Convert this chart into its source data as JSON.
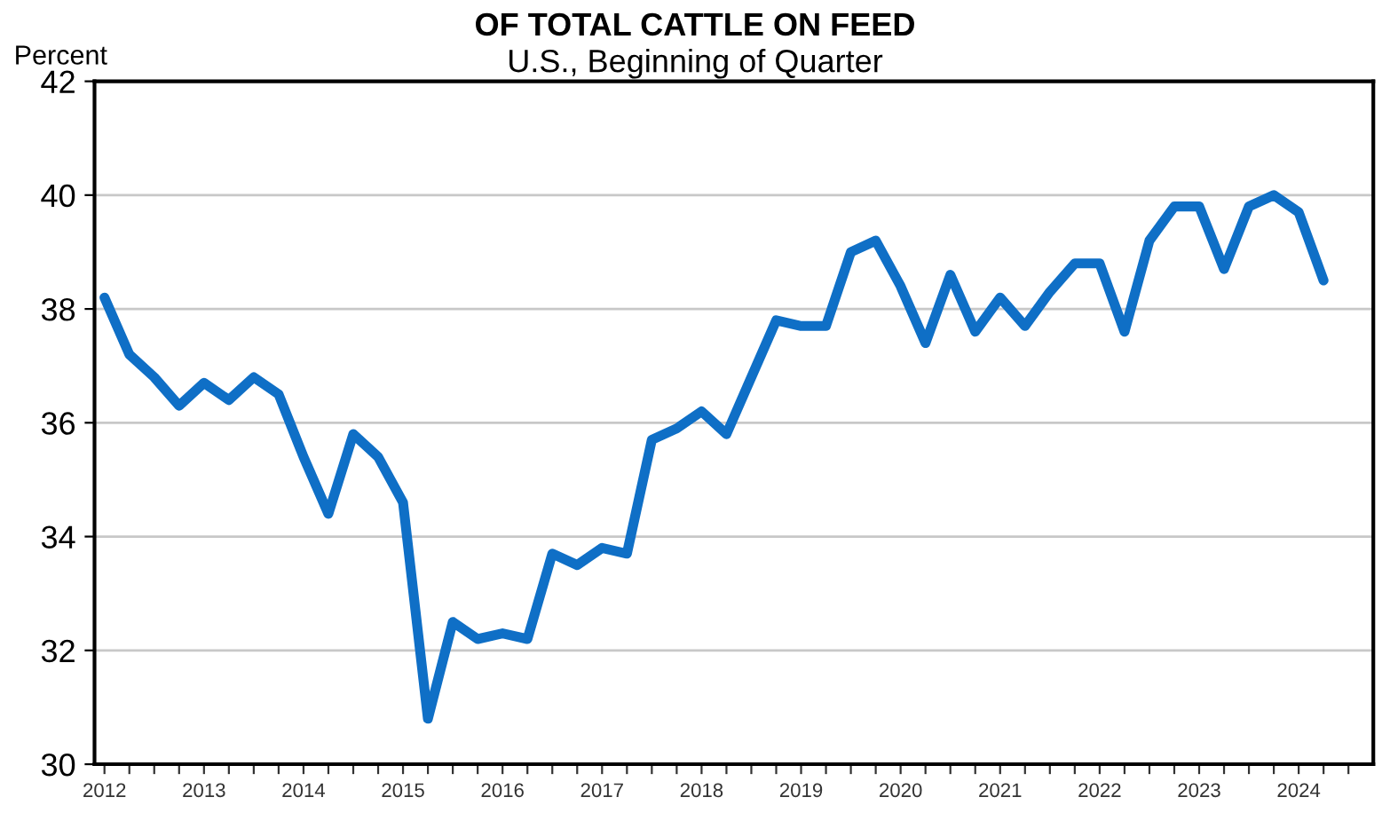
{
  "chart_data": {
    "type": "line",
    "title": "OF TOTAL CATTLE ON FEED",
    "subtitle": "U.S., Beginning of Quarter",
    "ylabel": "Percent",
    "x": [
      2012.0,
      2012.25,
      2012.5,
      2012.75,
      2013.0,
      2013.25,
      2013.5,
      2013.75,
      2014.0,
      2014.25,
      2014.5,
      2014.75,
      2015.0,
      2015.25,
      2015.5,
      2015.75,
      2016.0,
      2016.25,
      2016.5,
      2016.75,
      2017.0,
      2017.25,
      2017.5,
      2017.75,
      2018.0,
      2018.25,
      2018.5,
      2018.75,
      2019.0,
      2019.25,
      2019.5,
      2019.75,
      2020.0,
      2020.25,
      2020.5,
      2020.75,
      2021.0,
      2021.25,
      2021.5,
      2021.75,
      2022.0,
      2022.25,
      2022.5,
      2022.75,
      2023.0,
      2023.25,
      2023.5,
      2023.75,
      2024.0,
      2024.25
    ],
    "series": [
      {
        "color": "#0f6fc6",
        "values": [
          38.2,
          37.2,
          36.8,
          36.3,
          36.7,
          36.4,
          36.8,
          36.5,
          35.4,
          34.4,
          35.8,
          35.4,
          34.6,
          30.8,
          32.5,
          32.2,
          32.3,
          32.2,
          33.7,
          33.5,
          33.8,
          33.7,
          35.7,
          35.9,
          36.2,
          35.8,
          36.8,
          37.8,
          37.7,
          37.7,
          39.0,
          39.2,
          38.4,
          37.4,
          38.6,
          37.6,
          38.2,
          37.7,
          38.3,
          38.8,
          38.8,
          37.6,
          39.2,
          39.8,
          39.8,
          38.7,
          39.8,
          40.0,
          39.7,
          38.5
        ]
      }
    ],
    "xlim": [
      2011.9,
      2024.75
    ],
    "ylim": [
      30,
      42
    ],
    "yticks": [
      30,
      32,
      34,
      36,
      38,
      40,
      42
    ],
    "xticks": [
      2012,
      {
        "value": 2012.25,
        "label": null
      },
      {
        "value": 2012.5,
        "label": null
      },
      {
        "value": 2012.75,
        "label": null
      },
      2013,
      {
        "value": 2013.25,
        "label": null
      },
      {
        "value": 2013.5,
        "label": null
      },
      {
        "value": 2013.75,
        "label": null
      },
      2014,
      {
        "value": 2014.25,
        "label": null
      },
      {
        "value": 2014.5,
        "label": null
      },
      {
        "value": 2014.75,
        "label": null
      },
      2015,
      {
        "value": 2015.25,
        "label": null
      },
      {
        "value": 2015.5,
        "label": null
      },
      {
        "value": 2015.75,
        "label": null
      },
      2016,
      {
        "value": 2016.25,
        "label": null
      },
      {
        "value": 2016.5,
        "label": null
      },
      {
        "value": 2016.75,
        "label": null
      },
      2017,
      {
        "value": 2017.25,
        "label": null
      },
      {
        "value": 2017.5,
        "label": null
      },
      {
        "value": 2017.75,
        "label": null
      },
      2018,
      {
        "value": 2018.25,
        "label": null
      },
      {
        "value": 2018.5,
        "label": null
      },
      {
        "value": 2018.75,
        "label": null
      },
      2019,
      {
        "value": 2019.25,
        "label": null
      },
      {
        "value": 2019.5,
        "label": null
      },
      {
        "value": 2019.75,
        "label": null
      },
      2020,
      {
        "value": 2020.25,
        "label": null
      },
      {
        "value": 2020.5,
        "label": null
      },
      {
        "value": 2020.75,
        "label": null
      },
      2021,
      {
        "value": 2021.25,
        "label": null
      },
      {
        "value": 2021.5,
        "label": null
      },
      {
        "value": 2021.75,
        "label": null
      },
      2022,
      {
        "value": 2022.25,
        "label": null
      },
      {
        "value": 2022.5,
        "label": null
      },
      {
        "value": 2022.75,
        "label": null
      },
      2023,
      {
        "value": 2023.25,
        "label": null
      },
      {
        "value": 2023.5,
        "label": null
      },
      {
        "value": 2023.75,
        "label": null
      },
      2024,
      {
        "value": 2024.25,
        "label": null
      },
      {
        "value": 2024.5,
        "label": null
      }
    ],
    "grid": "y",
    "marker": "none",
    "line_style": "solid"
  }
}
